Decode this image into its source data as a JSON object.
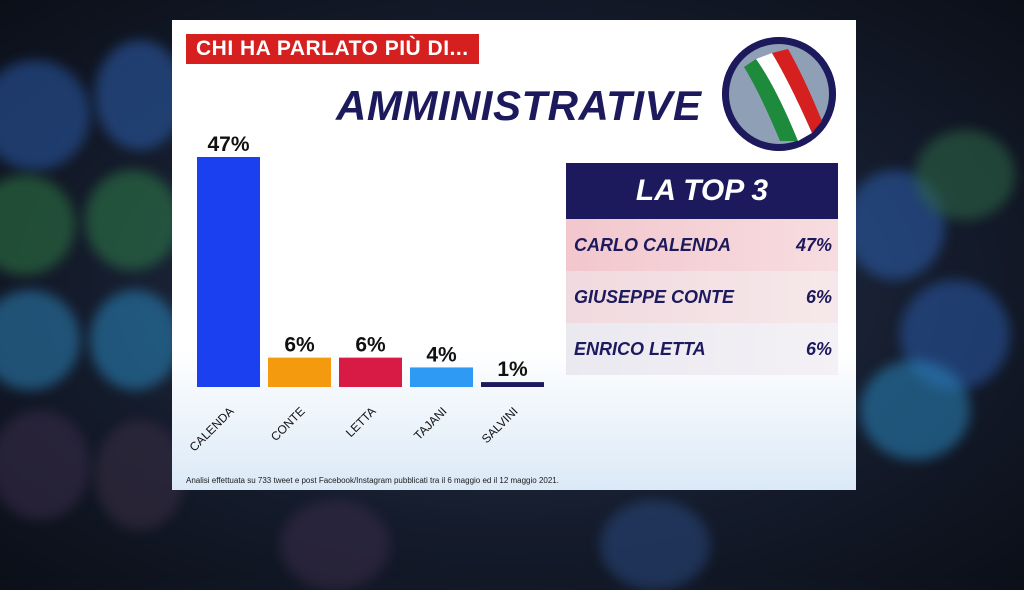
{
  "headline": "CHI HA PARLATO PIÙ DI...",
  "title": "AMMINISTRATIVE",
  "emblem": {
    "icon": "tricolor-sash-icon",
    "colors": [
      "#1d8a3c",
      "#ffffff",
      "#d61f1f"
    ]
  },
  "chart_data": {
    "type": "bar",
    "categories": [
      "CALENDA",
      "CONTE",
      "LETTA",
      "TAJANI",
      "SALVINI"
    ],
    "values": [
      47,
      6,
      6,
      4,
      1
    ],
    "labels": [
      "47%",
      "6%",
      "6%",
      "4%",
      "1%"
    ],
    "colors": [
      "#1a40f0",
      "#f39a0f",
      "#d81b45",
      "#2e9af4",
      "#1c1a5c"
    ],
    "ylim": [
      0,
      47
    ],
    "title": "",
    "xlabel": "",
    "ylabel": ""
  },
  "top3": {
    "title": "LA TOP 3",
    "rows": [
      {
        "name": "CARLO CALENDA",
        "value": "47%"
      },
      {
        "name": "GIUSEPPE CONTE",
        "value": "6%"
      },
      {
        "name": "ENRICO LETTA",
        "value": "6%"
      }
    ]
  },
  "footnote": "Analisi effettuata su 733 tweet e post Facebook/Instagram pubblicati tra il 6 maggio ed il 12 maggio 2021."
}
